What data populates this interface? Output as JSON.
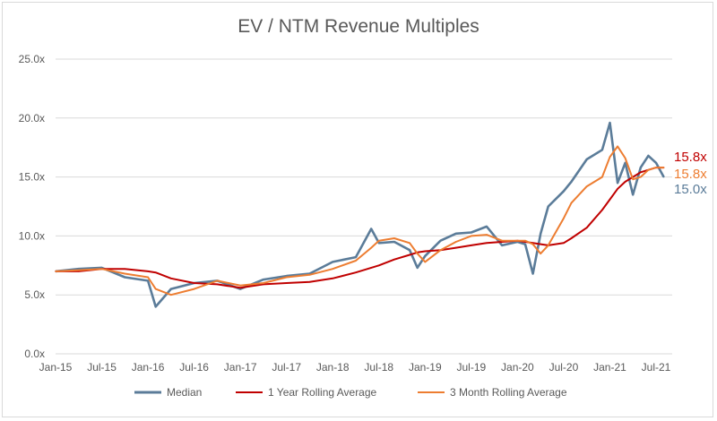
{
  "chart_data": {
    "type": "line",
    "title": "EV / NTM Revenue Multiples",
    "xlabel": "",
    "ylabel": "",
    "ylim": [
      0,
      25
    ],
    "y_ticks": [
      "0.0x",
      "5.0x",
      "10.0x",
      "15.0x",
      "20.0x",
      "25.0x"
    ],
    "x_ticks": [
      "Jan-15",
      "Jul-15",
      "Jan-16",
      "Jul-16",
      "Jan-17",
      "Jul-17",
      "Jan-18",
      "Jul-18",
      "Jan-19",
      "Jul-19",
      "Jan-20",
      "Jul-20",
      "Jan-21",
      "Jul-21"
    ],
    "grid": "horizontal",
    "legend_position": "bottom",
    "x_dates": [
      "2015-01",
      "2015-04",
      "2015-07",
      "2015-10",
      "2016-01",
      "2016-02",
      "2016-04",
      "2016-07",
      "2016-10",
      "2017-01",
      "2017-04",
      "2017-07",
      "2017-10",
      "2018-01",
      "2018-04",
      "2018-06",
      "2018-07",
      "2018-09",
      "2018-11",
      "2018-12",
      "2019-01",
      "2019-03",
      "2019-05",
      "2019-07",
      "2019-09",
      "2019-11",
      "2020-01",
      "2020-02",
      "2020-03",
      "2020-04",
      "2020-05",
      "2020-07",
      "2020-08",
      "2020-10",
      "2020-12",
      "2021-01",
      "2021-02",
      "2021-03",
      "2021-04",
      "2021-05",
      "2021-06",
      "2021-07",
      "2021-08"
    ],
    "series": [
      {
        "name": "Median",
        "color": "#5b7c99",
        "values": [
          7.0,
          7.2,
          7.3,
          6.5,
          6.2,
          4.0,
          5.5,
          6.0,
          6.2,
          5.5,
          6.3,
          6.6,
          6.8,
          7.8,
          8.2,
          10.6,
          9.4,
          9.5,
          8.8,
          7.3,
          8.3,
          9.6,
          10.2,
          10.3,
          10.8,
          9.2,
          9.5,
          9.3,
          6.8,
          10.2,
          12.5,
          13.8,
          14.6,
          16.5,
          17.3,
          19.6,
          14.5,
          16.2,
          13.5,
          15.8,
          16.8,
          16.2,
          15.0
        ]
      },
      {
        "name": "1 Year Rolling Average",
        "color": "#c00000",
        "values": [
          7.0,
          7.0,
          7.2,
          7.2,
          7.0,
          6.9,
          6.4,
          6.0,
          5.9,
          5.6,
          5.9,
          6.0,
          6.1,
          6.4,
          6.9,
          7.3,
          7.5,
          8.0,
          8.4,
          8.6,
          8.7,
          8.8,
          9.0,
          9.2,
          9.4,
          9.5,
          9.6,
          9.5,
          9.4,
          9.3,
          9.2,
          9.4,
          9.8,
          10.7,
          12.2,
          13.1,
          14.0,
          14.6,
          15.0,
          15.4,
          15.6,
          15.8,
          15.8
        ]
      },
      {
        "name": "3 Month Rolling Average",
        "color": "#ed7d31",
        "values": [
          7.0,
          7.1,
          7.2,
          6.8,
          6.5,
          5.5,
          5.0,
          5.5,
          6.2,
          5.8,
          6.0,
          6.5,
          6.7,
          7.2,
          7.9,
          9.0,
          9.6,
          9.8,
          9.4,
          8.5,
          7.8,
          8.8,
          9.5,
          10.0,
          10.1,
          9.6,
          9.6,
          9.6,
          9.3,
          8.5,
          9.2,
          11.5,
          12.8,
          14.2,
          15.0,
          16.7,
          17.6,
          16.6,
          14.8,
          15.0,
          15.6,
          15.8,
          15.8
        ]
      }
    ],
    "end_labels": [
      {
        "text": "15.8x",
        "color": "#c00000"
      },
      {
        "text": "15.8x",
        "color": "#ed7d31"
      },
      {
        "text": "15.0x",
        "color": "#5b7c99"
      }
    ]
  }
}
